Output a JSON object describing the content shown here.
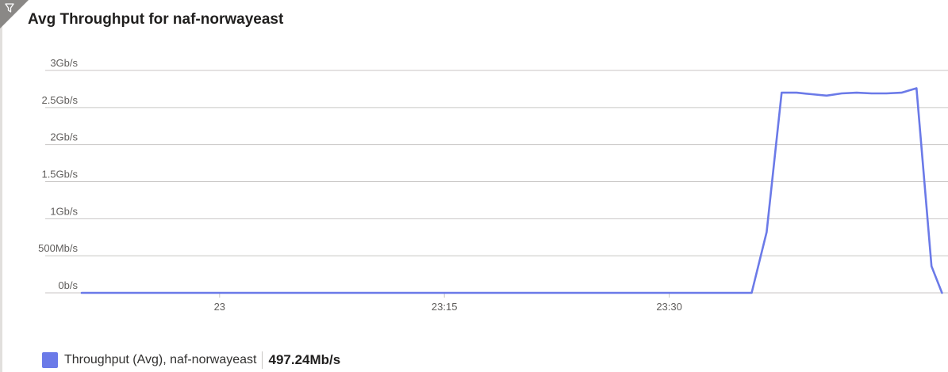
{
  "title": "Avg Throughput for naf-norwayeast",
  "filter_icon": "filter-icon",
  "colors": {
    "series": "#6b7ae8",
    "grid": "#c8c6c4",
    "axis_text": "#605e5c",
    "corner": "#8a8886"
  },
  "chart_data": {
    "type": "line",
    "title": "Avg Throughput for naf-norwayeast",
    "xlabel": "",
    "ylabel": "",
    "y_ticks": [
      "0b/s",
      "500Mb/s",
      "1Gb/s",
      "1.5Gb/s",
      "2Gb/s",
      "2.5Gb/s",
      "3Gb/s"
    ],
    "ylim_mbps": [
      0,
      3000
    ],
    "x_ticks": [
      "23",
      "23:15",
      "23:30"
    ],
    "x_tick_minutes": [
      0,
      15,
      30
    ],
    "xlim_minutes": [
      -9.2,
      48.6
    ],
    "grid": true,
    "legend_position": "bottom-left",
    "series": [
      {
        "name": "Throughput (Avg), naf-norwayeast",
        "color": "#6b7ae8",
        "points": [
          [
            -9.2,
            0
          ],
          [
            35.5,
            0
          ],
          [
            36.5,
            820
          ],
          [
            37.5,
            2700
          ],
          [
            38.5,
            2700
          ],
          [
            39.5,
            2680
          ],
          [
            40.5,
            2660
          ],
          [
            41.5,
            2690
          ],
          [
            42.5,
            2700
          ],
          [
            43.5,
            2690
          ],
          [
            44.5,
            2690
          ],
          [
            45.5,
            2700
          ],
          [
            46.5,
            2760
          ],
          [
            47.5,
            360
          ],
          [
            48.2,
            0
          ]
        ]
      }
    ]
  },
  "legend": {
    "label": "Throughput (Avg), naf-norwayeast",
    "value": "497.24Mb/s"
  }
}
